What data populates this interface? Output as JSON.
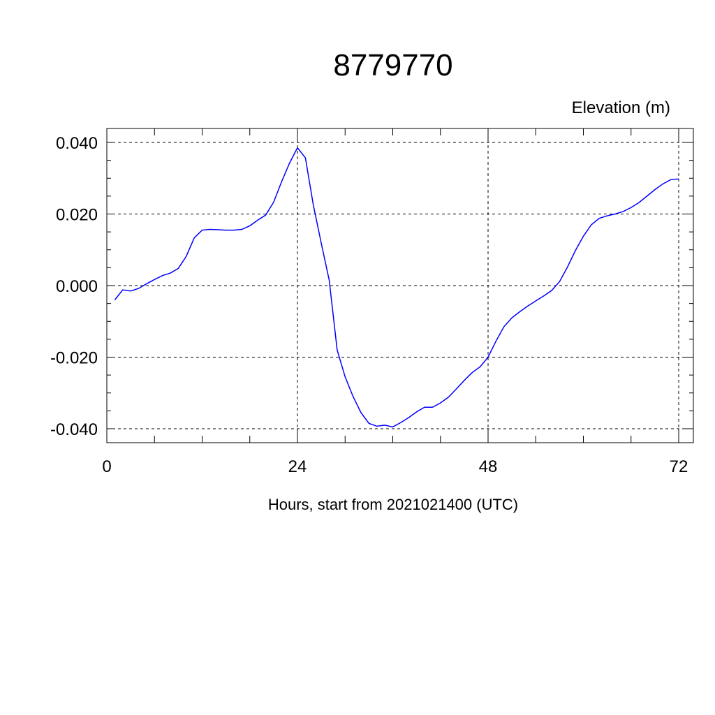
{
  "chart_data": {
    "type": "line",
    "title": "8779770",
    "ylabel": "Elevation (m)",
    "xlabel": "Hours, start from 2021021400 (UTC)",
    "xlim": [
      0,
      72
    ],
    "ylim": [
      -0.04,
      0.04
    ],
    "xticks": [
      0,
      24,
      48,
      72
    ],
    "xtick_labels": [
      "0",
      "24",
      "48",
      "72"
    ],
    "yticks": [
      -0.04,
      -0.02,
      0.0,
      0.02,
      0.04
    ],
    "ytick_labels": [
      "-0.040",
      "-0.020",
      "0.000",
      "0.020",
      "0.040"
    ],
    "grid": true,
    "line_color": "#0000ff",
    "x": [
      1,
      2,
      3,
      4,
      5,
      6,
      7,
      8,
      9,
      10,
      11,
      12,
      13,
      14,
      15,
      16,
      17,
      18,
      19,
      20,
      21,
      22,
      23,
      24,
      25,
      26,
      27,
      28,
      29,
      30,
      31,
      32,
      33,
      34,
      35,
      36,
      37,
      38,
      39,
      40,
      41,
      42,
      43,
      44,
      45,
      46,
      47,
      48,
      49,
      50,
      51,
      52,
      53,
      54,
      55,
      56,
      57,
      58,
      59,
      60,
      61,
      62,
      63,
      64,
      65,
      66,
      67,
      68,
      69,
      70,
      71,
      72
    ],
    "series": [
      {
        "values": [
          -0.004,
          -0.0012,
          -0.0015,
          -0.0008,
          0.0005,
          0.0017,
          0.0028,
          0.0035,
          0.0048,
          0.0082,
          0.0133,
          0.0155,
          0.0157,
          0.0156,
          0.0155,
          0.0155,
          0.0157,
          0.0167,
          0.0183,
          0.0197,
          0.0233,
          0.029,
          0.0342,
          0.0385,
          0.0357,
          0.0225,
          0.0118,
          0.0015,
          -0.018,
          -0.0255,
          -0.031,
          -0.0355,
          -0.0385,
          -0.0393,
          -0.039,
          -0.0395,
          -0.0383,
          -0.0369,
          -0.0353,
          -0.034,
          -0.034,
          -0.0328,
          -0.0312,
          -0.0289,
          -0.0265,
          -0.0243,
          -0.0227,
          -0.02,
          -0.0155,
          -0.0115,
          -0.009,
          -0.0073,
          -0.0057,
          -0.0043,
          -0.0029,
          -0.0014,
          0.0011,
          0.0052,
          0.0098,
          0.0138,
          0.017,
          0.0188,
          0.0195,
          0.02,
          0.0207,
          0.0218,
          0.0232,
          0.025,
          0.0268,
          0.0284,
          0.0296,
          0.0298
        ]
      }
    ]
  }
}
